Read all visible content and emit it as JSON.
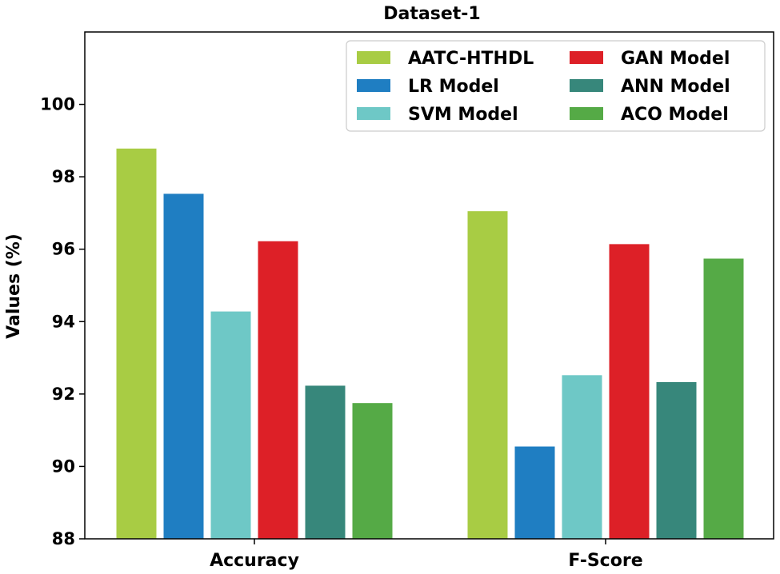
{
  "chart_data": {
    "type": "bar",
    "title": "Dataset-1",
    "xlabel": "",
    "ylabel": "Values (%)",
    "ylim": [
      88,
      102
    ],
    "yticks": [
      88,
      90,
      92,
      94,
      96,
      98,
      100
    ],
    "categories": [
      "Accuracy",
      "F-Score"
    ],
    "legend_position": "top-right",
    "series": [
      {
        "name": "AATC-HTHDL",
        "color": "#a8cc44",
        "values": [
          98.78,
          97.05
        ]
      },
      {
        "name": "LR Model",
        "color": "#1f7ec2",
        "values": [
          97.53,
          90.55
        ]
      },
      {
        "name": "SVM Model",
        "color": "#6ec8c6",
        "values": [
          94.28,
          92.52
        ]
      },
      {
        "name": "GAN Model",
        "color": "#dd2027",
        "values": [
          96.22,
          96.14
        ]
      },
      {
        "name": "ANN Model",
        "color": "#37877b",
        "values": [
          92.23,
          92.33
        ]
      },
      {
        "name": "ACO Model",
        "color": "#55aa46",
        "values": [
          91.75,
          95.74
        ]
      }
    ]
  }
}
